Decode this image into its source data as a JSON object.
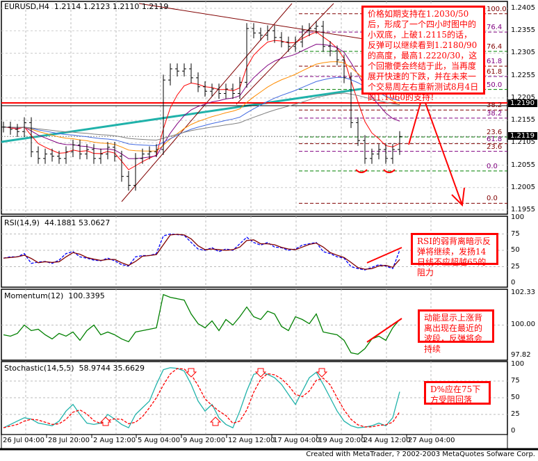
{
  "header": {
    "symbol": "EURUSD,H4",
    "ohlc": "1.2114 1.2123 1.2110 1.2119"
  },
  "price_boxes": {
    "resistance": "1.2190",
    "current": "1.2119"
  },
  "notes": {
    "main": "价格如期支持在1.2030/50后，形成了一个四小时图中的小双底，上破1.2115的话，反弹可以继续看到1.2180/90的高度，最高1.2220/30，这个回撤便会终结于此，当再度展开快速的下跌，并在未来一个交易周左右重新测试8月4日的1.1960的支持！",
    "rsi": "RSI的弱背离暗示反弹将继续，发扬14日线不应超越65的阻力",
    "momentum": "动能显示上涨背离出现在最近的波段，反弹将会持续",
    "stochastic": "D%应在75下方受阻回落"
  },
  "footer": "Created with MetaTrader, ? 2002-2003 MetaQuotes Sofware Corp.",
  "colors": {
    "bars": "#000000",
    "rsi": "#800000",
    "rsi_signal": "#0000ff",
    "momentum": "#008000",
    "stoch_main": "#20b2aa",
    "stoch_signal": "#ff0000",
    "annotation": "#ff0000"
  },
  "chart_data": [
    {
      "type": "ohlc",
      "title": "EURUSD,H4",
      "ylim": [
        1.1955,
        1.2405
      ],
      "yticks": [
        "1.2405",
        "1.2355",
        "1.2305",
        "1.2255",
        "1.2205",
        "1.2155",
        "1.2105",
        "1.2055",
        "1.2005",
        "1.1955"
      ],
      "close": [
        1.214,
        1.2135,
        1.213,
        1.215,
        1.2085,
        1.207,
        1.208,
        1.2075,
        1.207,
        1.2085,
        1.21,
        1.208,
        1.209,
        1.207,
        1.208,
        1.2095,
        1.2075,
        1.203,
        1.201,
        1.207,
        1.208,
        1.2085,
        1.209,
        1.2245,
        1.227,
        1.2265,
        1.227,
        1.225,
        1.223,
        1.222,
        1.2225,
        1.2215,
        1.2225,
        1.2215,
        1.224,
        1.236,
        1.235,
        1.2345,
        1.2355,
        1.234,
        1.233,
        1.232,
        1.233,
        1.2355,
        1.236,
        1.2365,
        1.232,
        1.231,
        1.229,
        1.225,
        1.215,
        1.211,
        1.207,
        1.208,
        1.209,
        1.207,
        1.209,
        1.2119
      ],
      "fib_levels": [
        {
          "label": "100.0",
          "price": 1.2393
        },
        {
          "label": "76.4",
          "price": 1.2352
        },
        {
          "label": "76.4",
          "price": 1.2309
        },
        {
          "label": "61.8",
          "price": 1.2276
        },
        {
          "label": "61.8",
          "price": 1.2253
        },
        {
          "label": "50.0",
          "price": 1.2224
        },
        {
          "label": "38.2",
          "price": 1.2178
        },
        {
          "label": "38.2",
          "price": 1.216
        },
        {
          "label": "23.6",
          "price": 1.2118
        },
        {
          "label": "61.8",
          "price": 1.2103
        },
        {
          "label": "23.6",
          "price": 1.2086
        },
        {
          "label": "0.0",
          "price": 1.2042
        },
        {
          "label": "0.0",
          "price": 1.197
        }
      ]
    },
    {
      "type": "line",
      "title": "RSI(14,9)",
      "values_text": "44.1881 53.0627",
      "ylim": [
        0,
        100
      ],
      "yticks": [
        "100",
        "75",
        "50",
        "25",
        "0"
      ],
      "values": [
        38,
        40,
        40,
        45,
        30,
        32,
        33,
        30,
        35,
        45,
        48,
        40,
        38,
        35,
        34,
        38,
        34,
        28,
        26,
        40,
        42,
        42,
        45,
        72,
        75,
        74,
        73,
        62,
        52,
        50,
        54,
        48,
        52,
        50,
        60,
        70,
        62,
        58,
        62,
        55,
        54,
        50,
        52,
        58,
        60,
        62,
        48,
        45,
        40,
        38,
        25,
        22,
        20,
        24,
        28,
        26,
        22,
        50
      ]
    },
    {
      "type": "line",
      "title": "Momentum(12)",
      "values_text": "100.3395",
      "ylim": [
        97.82,
        102.33
      ],
      "yticks": [
        "102.33",
        "100.00",
        "97.82"
      ],
      "values": [
        99.3,
        99.2,
        99.4,
        100.0,
        99.6,
        99.7,
        99.3,
        99.0,
        99.4,
        99.2,
        99.5,
        98.9,
        99.6,
        100.0,
        99.3,
        99.5,
        99.3,
        99.0,
        98.8,
        99.5,
        99.6,
        99.7,
        99.8,
        102.2,
        102.0,
        101.9,
        101.8,
        100.8,
        100.1,
        99.8,
        100.3,
        99.6,
        100.4,
        100.0,
        100.6,
        101.3,
        100.6,
        100.4,
        101.0,
        100.8,
        99.9,
        99.6,
        100.6,
        100.4,
        100.1,
        100.8,
        99.5,
        99.4,
        99.3,
        98.9,
        98.0,
        97.9,
        98.3,
        99.0,
        99.2,
        98.9,
        99.8,
        100.4
      ]
    },
    {
      "type": "line",
      "title": "Stochastic(14,5,5)",
      "values_text": "58.9744 35.6629",
      "ylim": [
        0,
        100
      ],
      "yticks": [
        "100",
        "75",
        "50",
        "25",
        "0"
      ],
      "values": [
        5,
        10,
        15,
        20,
        18,
        12,
        10,
        8,
        15,
        30,
        40,
        25,
        12,
        10,
        12,
        25,
        18,
        10,
        5,
        25,
        35,
        45,
        70,
        92,
        95,
        94,
        90,
        70,
        45,
        30,
        40,
        20,
        10,
        5,
        30,
        60,
        85,
        88,
        85,
        80,
        70,
        55,
        40,
        60,
        80,
        88,
        70,
        50,
        30,
        15,
        8,
        5,
        6,
        8,
        12,
        8,
        20,
        59
      ]
    }
  ],
  "x_ticks": [
    "26 Jul 04:00",
    "28 Jul 20:00",
    "2 Aug 12:00",
    "5 Aug 04:00",
    "9 Aug 20:00",
    "12 Aug 12:00",
    "17 Aug 04:00",
    "19 Aug 20:00",
    "24 Aug 12:00",
    "27 Aug 04:00"
  ]
}
